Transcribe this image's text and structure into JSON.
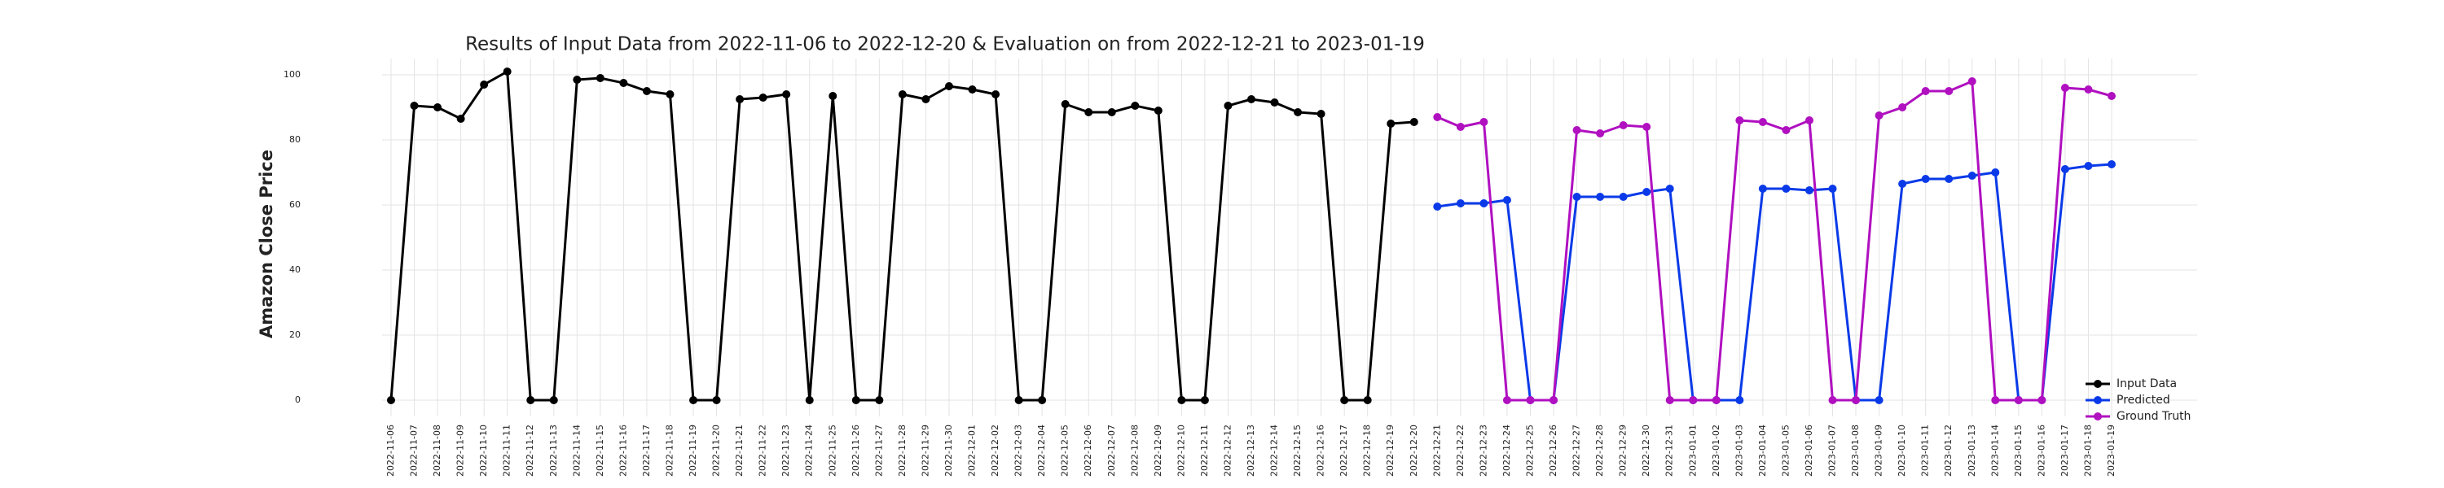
{
  "chart_data": {
    "type": "line",
    "title": "Results of Input Data from 2022-11-06 to 2022-12-20 & Evaluation on from 2022-12-21 to 2023-01-19",
    "ylabel": "Amazon Close Price",
    "categories": [
      "2022-11-06",
      "2022-11-07",
      "2022-11-08",
      "2022-11-09",
      "2022-11-10",
      "2022-11-11",
      "2022-11-12",
      "2022-11-13",
      "2022-11-14",
      "2022-11-15",
      "2022-11-16",
      "2022-11-17",
      "2022-11-18",
      "2022-11-19",
      "2022-11-20",
      "2022-11-21",
      "2022-11-22",
      "2022-11-23",
      "2022-11-24",
      "2022-11-25",
      "2022-11-26",
      "2022-11-27",
      "2022-11-28",
      "2022-11-29",
      "2022-11-30",
      "2022-12-01",
      "2022-12-02",
      "2022-12-03",
      "2022-12-04",
      "2022-12-05",
      "2022-12-06",
      "2022-12-07",
      "2022-12-08",
      "2022-12-09",
      "2022-12-10",
      "2022-12-11",
      "2022-12-12",
      "2022-12-13",
      "2022-12-14",
      "2022-12-15",
      "2022-12-16",
      "2022-12-17",
      "2022-12-18",
      "2022-12-19",
      "2022-12-20",
      "2022-12-21",
      "2022-12-22",
      "2022-12-23",
      "2022-12-24",
      "2022-12-25",
      "2022-12-26",
      "2022-12-27",
      "2022-12-28",
      "2022-12-29",
      "2022-12-30",
      "2022-12-31",
      "2023-01-01",
      "2023-01-02",
      "2023-01-03",
      "2023-01-04",
      "2023-01-05",
      "2023-01-06",
      "2023-01-07",
      "2023-01-08",
      "2023-01-09",
      "2023-01-10",
      "2023-01-11",
      "2023-01-12",
      "2023-01-13",
      "2023-01-14",
      "2023-01-15",
      "2023-01-16",
      "2023-01-17",
      "2023-01-18",
      "2023-01-19"
    ],
    "series": [
      {
        "name": "Input Data",
        "color": "#000000",
        "values": [
          0,
          90.5,
          90,
          86.5,
          97,
          101,
          0,
          0,
          98.5,
          99,
          97.5,
          95,
          94,
          0,
          0,
          92.5,
          93,
          94,
          0,
          93.5,
          0,
          0,
          94,
          92.5,
          96.5,
          95.5,
          94,
          0,
          0,
          91,
          88.5,
          88.5,
          90.5,
          89,
          0,
          0,
          90.5,
          92.5,
          91.5,
          88.5,
          88,
          0,
          0,
          85,
          85.5,
          null,
          null,
          null,
          null,
          null,
          null,
          null,
          null,
          null,
          null,
          null,
          null,
          null,
          null,
          null,
          null,
          null,
          null,
          null,
          null,
          null,
          null,
          null,
          null,
          null,
          null,
          null,
          null,
          null,
          null
        ]
      },
      {
        "name": "Predicted",
        "color": "#0a3ae8",
        "values": [
          null,
          null,
          null,
          null,
          null,
          null,
          null,
          null,
          null,
          null,
          null,
          null,
          null,
          null,
          null,
          null,
          null,
          null,
          null,
          null,
          null,
          null,
          null,
          null,
          null,
          null,
          null,
          null,
          null,
          null,
          null,
          null,
          null,
          null,
          null,
          null,
          null,
          null,
          null,
          null,
          null,
          null,
          null,
          null,
          null,
          59.5,
          60.5,
          60.5,
          61.5,
          0,
          0,
          62.5,
          62.5,
          62.5,
          64,
          65,
          0,
          0,
          0,
          65,
          65,
          64.5,
          65,
          0,
          0,
          66.5,
          68,
          68,
          69,
          70,
          0,
          0,
          71,
          72,
          72.5
        ]
      },
      {
        "name": "Ground Truth",
        "color": "#b010c0",
        "values": [
          null,
          null,
          null,
          null,
          null,
          null,
          null,
          null,
          null,
          null,
          null,
          null,
          null,
          null,
          null,
          null,
          null,
          null,
          null,
          null,
          null,
          null,
          null,
          null,
          null,
          null,
          null,
          null,
          null,
          null,
          null,
          null,
          null,
          null,
          null,
          null,
          null,
          null,
          null,
          null,
          null,
          null,
          null,
          null,
          null,
          87,
          84,
          85.5,
          0,
          0,
          0,
          83,
          82,
          84.5,
          84,
          0,
          0,
          0,
          86,
          85.5,
          83,
          86,
          0,
          0,
          87.5,
          90,
          95,
          95,
          98,
          0,
          0,
          0,
          96,
          95.5,
          93.5
        ]
      }
    ],
    "ylim": [
      -5,
      105
    ],
    "yticks": [
      0,
      20,
      40,
      60,
      80,
      100
    ],
    "grid": true,
    "legend": "lower right"
  }
}
